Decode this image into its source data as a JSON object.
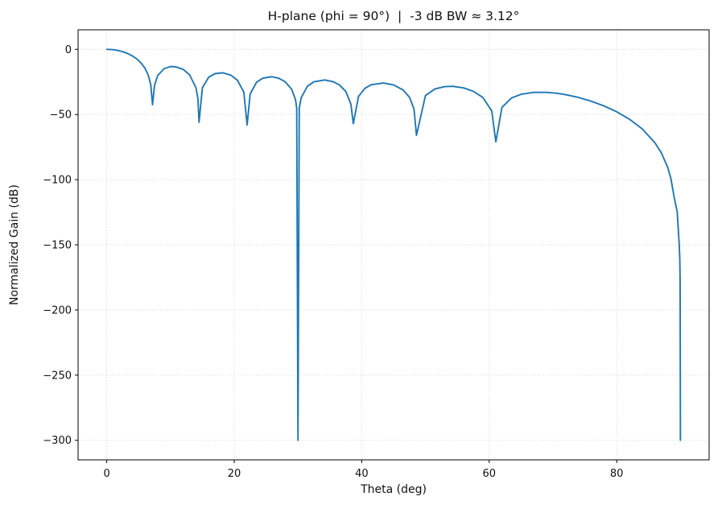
{
  "figure": {
    "title": "H-plane (phi = 90°)  |  -3 dB BW ≈ 3.12°",
    "xlabel": "Theta (deg)",
    "ylabel": "Normalized Gain (dB)"
  },
  "chart_data": {
    "type": "line",
    "title": "H-plane (phi = 90°)  |  -3 dB BW ≈ 3.12°",
    "xlabel": "Theta (deg)",
    "ylabel": "Normalized Gain (dB)",
    "xlim": [
      -4.5,
      94.5
    ],
    "ylim": [
      -315,
      15
    ],
    "xticks": {
      "values": [
        0,
        20,
        40,
        60,
        80
      ],
      "labels": [
        "0",
        "20",
        "40",
        "60",
        "80"
      ]
    },
    "yticks": {
      "values": [
        0,
        -50,
        -100,
        -150,
        -200,
        -250,
        -300
      ],
      "labels": [
        "0",
        "−50",
        "−100",
        "−150",
        "−200",
        "−250",
        "−300"
      ]
    },
    "grid": true,
    "legend": false,
    "background": "#ffffff",
    "beamwidth_deg_minus3dB": 3.12,
    "nulls_theta_deg": [
      7.2,
      14.5,
      22.0,
      30.0,
      38.7,
      48.6,
      61.0,
      90.0
    ],
    "sidelobe_peaks": [
      {
        "theta": 10.8,
        "db": -13.4
      },
      {
        "theta": 18.2,
        "db": -18.0
      },
      {
        "theta": 25.9,
        "db": -21.0
      },
      {
        "theta": 34.2,
        "db": -23.5
      },
      {
        "theta": 43.4,
        "db": -25.8
      },
      {
        "theta": 54.3,
        "db": -28.4
      },
      {
        "theta": 69.0,
        "db": -33.0
      }
    ],
    "series": [
      {
        "name": "normalized-gain",
        "color": "#1f77b4",
        "points": [
          [
            0,
            0
          ],
          [
            0.5,
            -0.07
          ],
          [
            1,
            -0.28
          ],
          [
            1.5,
            -0.64
          ],
          [
            2,
            -1.15
          ],
          [
            2.5,
            -1.81
          ],
          [
            3,
            -2.66
          ],
          [
            3.5,
            -3.72
          ],
          [
            4,
            -5.0
          ],
          [
            4.5,
            -6.6
          ],
          [
            5,
            -8.6
          ],
          [
            5.5,
            -11.2
          ],
          [
            6,
            -14.5
          ],
          [
            6.5,
            -19.7
          ],
          [
            6.9,
            -27
          ],
          [
            7.18,
            -42.5
          ],
          [
            7.5,
            -27.5
          ],
          [
            8,
            -20.0
          ],
          [
            9,
            -14.8
          ],
          [
            10,
            -13.2
          ],
          [
            10.8,
            -13.4
          ],
          [
            12,
            -15.4
          ],
          [
            13,
            -19.6
          ],
          [
            14,
            -29.5
          ],
          [
            14.3,
            -38
          ],
          [
            14.48,
            -56
          ],
          [
            15,
            -29.5
          ],
          [
            16,
            -21.3
          ],
          [
            17,
            -18.6
          ],
          [
            18.2,
            -18.0
          ],
          [
            19.5,
            -19.9
          ],
          [
            20.5,
            -23.7
          ],
          [
            21.5,
            -32.8
          ],
          [
            22.02,
            -58
          ],
          [
            22.5,
            -34.2
          ],
          [
            23.5,
            -25.2
          ],
          [
            24.5,
            -22.1
          ],
          [
            25.9,
            -21.0
          ],
          [
            27,
            -22.2
          ],
          [
            28,
            -24.9
          ],
          [
            29,
            -30.6
          ],
          [
            29.6,
            -38.4
          ],
          [
            29.8,
            -45
          ],
          [
            30,
            -300
          ],
          [
            30.2,
            -45
          ],
          [
            30.5,
            -37.1
          ],
          [
            31.5,
            -28.2
          ],
          [
            32.5,
            -24.9
          ],
          [
            34.2,
            -23.5
          ],
          [
            35.5,
            -24.8
          ],
          [
            36.5,
            -27.3
          ],
          [
            37.5,
            -32.3
          ],
          [
            38.3,
            -42
          ],
          [
            38.68,
            -57
          ],
          [
            39.5,
            -36.1
          ],
          [
            40.5,
            -29.9
          ],
          [
            41.5,
            -27.1
          ],
          [
            43.4,
            -25.8
          ],
          [
            45,
            -27.3
          ],
          [
            46.5,
            -31.2
          ],
          [
            47.5,
            -36.8
          ],
          [
            48.2,
            -45.8
          ],
          [
            48.59,
            -66
          ],
          [
            50,
            -35.4
          ],
          [
            51.5,
            -30.4
          ],
          [
            53,
            -28.6
          ],
          [
            54.3,
            -28.4
          ],
          [
            56,
            -29.6
          ],
          [
            57.5,
            -32.2
          ],
          [
            59,
            -36.9
          ],
          [
            60.4,
            -47.3
          ],
          [
            61.04,
            -71
          ],
          [
            62,
            -44.5
          ],
          [
            63.5,
            -37.3
          ],
          [
            65,
            -34.5
          ],
          [
            67,
            -33.0
          ],
          [
            69,
            -33.0
          ],
          [
            70.5,
            -33.6
          ],
          [
            72,
            -34.8
          ],
          [
            74,
            -36.9
          ],
          [
            76,
            -39.8
          ],
          [
            78,
            -43.4
          ],
          [
            80,
            -47.9
          ],
          [
            82,
            -53.6
          ],
          [
            84,
            -61.0
          ],
          [
            86,
            -71.7
          ],
          [
            87,
            -79.4
          ],
          [
            88,
            -90.5
          ],
          [
            88.5,
            -99.1
          ],
          [
            89,
            -113
          ],
          [
            89.5,
            -125
          ],
          [
            89.8,
            -149
          ],
          [
            89.9,
            -161
          ],
          [
            89.95,
            -178
          ],
          [
            90,
            -300
          ]
        ]
      }
    ]
  }
}
